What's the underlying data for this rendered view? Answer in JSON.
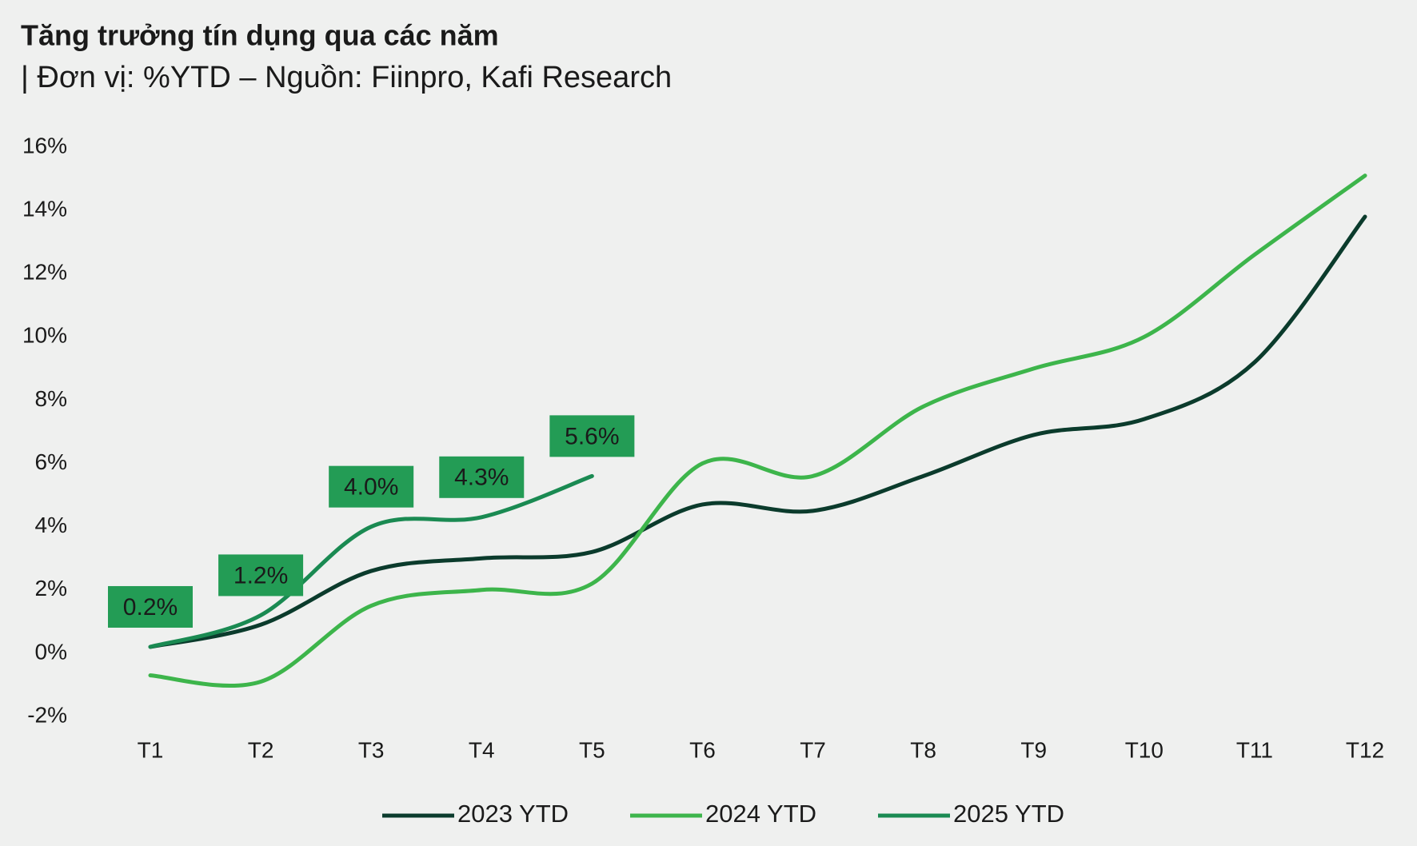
{
  "chart_data": {
    "type": "line",
    "title": "Tăng trưởng tín dụng qua các năm",
    "subtitle": "| Đơn vị: %YTD – Nguồn: Fiinpro, Kafi Research",
    "categories": [
      "T1",
      "T2",
      "T3",
      "T4",
      "T5",
      "T6",
      "T7",
      "T8",
      "T9",
      "T10",
      "T11",
      "T12"
    ],
    "series": [
      {
        "name": "2023 YTD",
        "color": "#0b3b2c",
        "values": [
          0.2,
          0.9,
          2.6,
          3.0,
          3.2,
          4.7,
          4.5,
          5.6,
          6.9,
          7.4,
          9.2,
          13.8
        ]
      },
      {
        "name": "2024 YTD",
        "color": "#3db54b",
        "values": [
          -0.7,
          -0.9,
          1.5,
          2.0,
          2.2,
          6.0,
          5.6,
          7.8,
          9.0,
          10.0,
          12.6,
          15.1
        ]
      },
      {
        "name": "2025 YTD",
        "color": "#1a8a52",
        "values": [
          0.2,
          1.2,
          4.0,
          4.3,
          5.6,
          null,
          null,
          null,
          null,
          null,
          null,
          null
        ],
        "value_labels": [
          "0.2%",
          "1.2%",
          "4.0%",
          "4.3%",
          "5.6%",
          null,
          null,
          null,
          null,
          null,
          null,
          null
        ]
      }
    ],
    "ylim": [
      -2,
      16
    ],
    "yticks": [
      {
        "value": -2,
        "label": "-2%"
      },
      {
        "value": 0,
        "label": "0%"
      },
      {
        "value": 2,
        "label": "2%"
      },
      {
        "value": 4,
        "label": "4%"
      },
      {
        "value": 6,
        "label": "6%"
      },
      {
        "value": 8,
        "label": "8%"
      },
      {
        "value": 10,
        "label": "10%"
      },
      {
        "value": 12,
        "label": "12%"
      },
      {
        "value": 14,
        "label": "14%"
      },
      {
        "value": 16,
        "label": "16%"
      }
    ],
    "grid": false
  }
}
